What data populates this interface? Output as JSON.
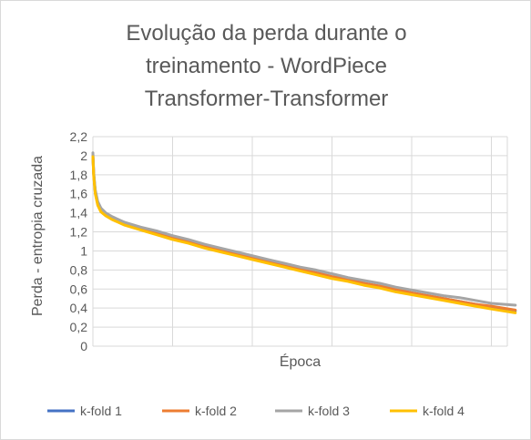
{
  "chart_data": {
    "type": "line",
    "title_lines": [
      "Evolução da perda durante o",
      "treinamento  - WordPiece",
      "Transformer-Transformer"
    ],
    "xlabel": "Época",
    "ylabel": "Perda - entropia cruzada",
    "ylim": [
      0,
      2.2
    ],
    "yticks": [
      "0",
      "0,2",
      "0,4",
      "0,6",
      "0,8",
      "1",
      "1,2",
      "1,4",
      "1,6",
      "1,8",
      "2",
      "2,2"
    ],
    "xlim": [
      0,
      26
    ],
    "x_vertical_grid_every": 5,
    "grid": true,
    "legend_position": "bottom",
    "series": [
      {
        "name": "k-fold 1",
        "color": "#4472C4",
        "points": [
          [
            0,
            2.0
          ],
          [
            0.05,
            1.8
          ],
          [
            0.15,
            1.62
          ],
          [
            0.3,
            1.5
          ],
          [
            0.5,
            1.43
          ],
          [
            0.8,
            1.38
          ],
          [
            1.2,
            1.34
          ],
          [
            2,
            1.29
          ],
          [
            3,
            1.24
          ],
          [
            4,
            1.19
          ],
          [
            5,
            1.14
          ],
          [
            6,
            1.1
          ],
          [
            7,
            1.05
          ],
          [
            8,
            1.01
          ],
          [
            9,
            0.97
          ],
          [
            10,
            0.93
          ],
          [
            11,
            0.89
          ],
          [
            12,
            0.85
          ],
          [
            13,
            0.81
          ],
          [
            14,
            0.77
          ],
          [
            15,
            0.73
          ],
          [
            16,
            0.7
          ],
          [
            17,
            0.66
          ],
          [
            18,
            0.63
          ],
          [
            19,
            0.59
          ],
          [
            20,
            0.56
          ],
          [
            21,
            0.53
          ],
          [
            22,
            0.5
          ],
          [
            23,
            0.47
          ],
          [
            24,
            0.44
          ],
          [
            25,
            0.41
          ],
          [
            26.5,
            0.37
          ]
        ]
      },
      {
        "name": "k-fold 2",
        "color": "#ED7D31",
        "points": [
          [
            0,
            2.0
          ],
          [
            0.05,
            1.8
          ],
          [
            0.15,
            1.62
          ],
          [
            0.3,
            1.5
          ],
          [
            0.5,
            1.43
          ],
          [
            0.8,
            1.38
          ],
          [
            1.2,
            1.34
          ],
          [
            2,
            1.29
          ],
          [
            3,
            1.24
          ],
          [
            4,
            1.19
          ],
          [
            5,
            1.14
          ],
          [
            6,
            1.1
          ],
          [
            7,
            1.05
          ],
          [
            8,
            1.01
          ],
          [
            9,
            0.97
          ],
          [
            10,
            0.93
          ],
          [
            11,
            0.89
          ],
          [
            12,
            0.85
          ],
          [
            13,
            0.81
          ],
          [
            14,
            0.77
          ],
          [
            15,
            0.73
          ],
          [
            16,
            0.7
          ],
          [
            17,
            0.66
          ],
          [
            18,
            0.63
          ],
          [
            19,
            0.6
          ],
          [
            20,
            0.56
          ],
          [
            21,
            0.53
          ],
          [
            22,
            0.5
          ],
          [
            23,
            0.47
          ],
          [
            24,
            0.44
          ],
          [
            25,
            0.42
          ],
          [
            26.5,
            0.38
          ]
        ]
      },
      {
        "name": "k-fold 3",
        "color": "#A5A5A5",
        "points": [
          [
            0,
            2.03
          ],
          [
            0.05,
            1.82
          ],
          [
            0.15,
            1.64
          ],
          [
            0.3,
            1.52
          ],
          [
            0.5,
            1.45
          ],
          [
            0.8,
            1.4
          ],
          [
            1.2,
            1.36
          ],
          [
            2,
            1.3
          ],
          [
            3,
            1.25
          ],
          [
            4,
            1.21
          ],
          [
            5,
            1.16
          ],
          [
            6,
            1.12
          ],
          [
            7,
            1.07
          ],
          [
            8,
            1.03
          ],
          [
            9,
            0.99
          ],
          [
            10,
            0.95
          ],
          [
            11,
            0.91
          ],
          [
            12,
            0.87
          ],
          [
            13,
            0.83
          ],
          [
            14,
            0.8
          ],
          [
            15,
            0.76
          ],
          [
            16,
            0.72
          ],
          [
            17,
            0.69
          ],
          [
            18,
            0.66
          ],
          [
            19,
            0.62
          ],
          [
            20,
            0.59
          ],
          [
            21,
            0.56
          ],
          [
            22,
            0.53
          ],
          [
            23,
            0.51
          ],
          [
            24,
            0.48
          ],
          [
            25,
            0.45
          ],
          [
            26.5,
            0.43
          ]
        ]
      },
      {
        "name": "k-fold 4",
        "color": "#FFC000",
        "points": [
          [
            0,
            1.99
          ],
          [
            0.05,
            1.78
          ],
          [
            0.15,
            1.6
          ],
          [
            0.3,
            1.48
          ],
          [
            0.5,
            1.41
          ],
          [
            0.8,
            1.37
          ],
          [
            1.2,
            1.33
          ],
          [
            2,
            1.27
          ],
          [
            3,
            1.22
          ],
          [
            4,
            1.17
          ],
          [
            5,
            1.12
          ],
          [
            6,
            1.08
          ],
          [
            7,
            1.03
          ],
          [
            8,
            0.99
          ],
          [
            9,
            0.95
          ],
          [
            10,
            0.91
          ],
          [
            11,
            0.87
          ],
          [
            12,
            0.83
          ],
          [
            13,
            0.79
          ],
          [
            14,
            0.75
          ],
          [
            15,
            0.71
          ],
          [
            16,
            0.68
          ],
          [
            17,
            0.64
          ],
          [
            18,
            0.61
          ],
          [
            19,
            0.57
          ],
          [
            20,
            0.54
          ],
          [
            21,
            0.51
          ],
          [
            22,
            0.48
          ],
          [
            23,
            0.45
          ],
          [
            24,
            0.42
          ],
          [
            25,
            0.39
          ],
          [
            26.5,
            0.35
          ]
        ]
      }
    ]
  }
}
